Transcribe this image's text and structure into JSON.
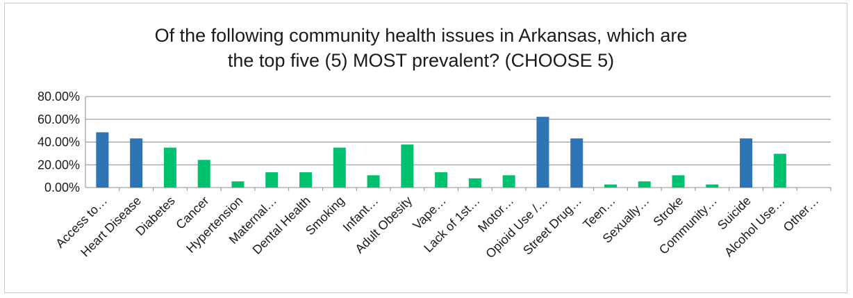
{
  "chart_data": {
    "type": "bar",
    "title_lines": [
      "Of the following community health issues in Arkansas, which are",
      "the top five (5) MOST prevalent? (CHOOSE 5)"
    ],
    "categories": [
      "Access to…",
      "Heart Disease",
      "Diabetes",
      "Cancer",
      "Hypertension",
      "Maternal…",
      "Dental Health",
      "Smoking",
      "Infant…",
      "Adult Obesity",
      "Vape…",
      "Lack of 1st…",
      "Motor…",
      "Opioid Use /…",
      "Street Drug…",
      "Teen…",
      "Sexually…",
      "Stroke",
      "Community…",
      "Suicide",
      "Alcohol Use…",
      "Other…"
    ],
    "values": [
      48.6,
      43.2,
      35.1,
      24.3,
      5.4,
      13.5,
      13.5,
      35.1,
      10.8,
      37.8,
      13.5,
      8.1,
      10.8,
      62.2,
      43.2,
      2.7,
      5.4,
      10.8,
      2.7,
      43.2,
      29.7,
      0.0
    ],
    "highlight": [
      true,
      true,
      false,
      false,
      false,
      false,
      false,
      false,
      false,
      false,
      false,
      false,
      false,
      true,
      true,
      false,
      false,
      false,
      false,
      true,
      false,
      false
    ],
    "colors": {
      "highlight": "#2e75b6",
      "normal": "#00c16e"
    },
    "y_ticks": [
      "0.00%",
      "20.00%",
      "40.00%",
      "60.00%",
      "80.00%"
    ],
    "ylim": [
      0,
      80
    ],
    "grid": true
  }
}
